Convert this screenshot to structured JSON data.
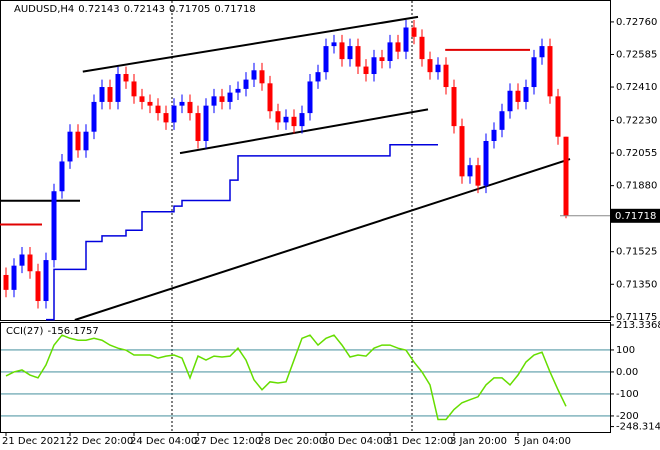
{
  "chart_data": [
    {
      "type": "candlestick",
      "title": "AUDUSD,H4",
      "categories": [
        "21 Dec 2021",
        null,
        null,
        null,
        null,
        null,
        null,
        null,
        "22 Dec 20:00",
        null,
        null,
        null,
        null,
        null,
        null,
        null,
        "24 Dec 04:00",
        null,
        null,
        null,
        null,
        null,
        null,
        null,
        "27 Dec 12:00",
        null,
        null,
        null,
        null,
        null,
        null,
        null,
        "28 Dec 20:00",
        null,
        null,
        null,
        null,
        null,
        null,
        null,
        "30 Dec 04:00",
        null,
        null,
        null,
        null,
        null,
        null,
        null,
        "31 Dec 12:00",
        null,
        null,
        null,
        null,
        null,
        null,
        null,
        "3 Jan 20:00",
        null,
        null,
        null,
        null,
        null,
        null,
        null,
        "5 Jan 04:00",
        null,
        null,
        null,
        null,
        null,
        null
      ],
      "open": [
        0.714,
        0.7132,
        0.7145,
        0.7151,
        0.7142,
        0.7126,
        0.7148,
        0.7185,
        0.7201,
        0.7217,
        0.7207,
        0.7217,
        0.7233,
        0.7241,
        0.7233,
        0.7248,
        0.7244,
        0.7236,
        0.7233,
        0.7231,
        0.7227,
        0.7222,
        0.7231,
        0.7233,
        0.7227,
        0.7212,
        0.7231,
        0.7236,
        0.7233,
        0.7238,
        0.724,
        0.7245,
        0.725,
        0.7243,
        0.7228,
        0.7222,
        0.7225,
        0.722,
        0.7227,
        0.7244,
        0.7249,
        0.7263,
        0.7265,
        0.7256,
        0.7263,
        0.7252,
        0.7248,
        0.7257,
        0.7255,
        0.7265,
        0.726,
        0.7273,
        0.7268,
        0.7256,
        0.7249,
        0.7253,
        0.7241,
        0.722,
        0.7193,
        0.7199,
        0.7188,
        0.7212,
        0.7218,
        0.7228,
        0.7239,
        0.7233,
        0.7241,
        0.7257,
        0.7263,
        0.7236,
        0.72143
      ],
      "high": [
        0.7144,
        0.7149,
        0.7155,
        0.7155,
        0.7146,
        0.7152,
        0.7189,
        0.7205,
        0.7221,
        0.7221,
        0.7221,
        0.7237,
        0.7245,
        0.7245,
        0.7252,
        0.7252,
        0.7248,
        0.724,
        0.7237,
        0.7235,
        0.7231,
        0.7235,
        0.7237,
        0.7237,
        0.7231,
        0.7235,
        0.724,
        0.724,
        0.7242,
        0.7244,
        0.7249,
        0.7254,
        0.7254,
        0.7247,
        0.7232,
        0.7229,
        0.7229,
        0.7231,
        0.7248,
        0.7253,
        0.7267,
        0.7269,
        0.7269,
        0.7267,
        0.7267,
        0.7256,
        0.7261,
        0.7261,
        0.7269,
        0.7269,
        0.7277,
        0.7277,
        0.7272,
        0.726,
        0.7257,
        0.7257,
        0.7245,
        0.7224,
        0.7203,
        0.7203,
        0.7216,
        0.7222,
        0.7232,
        0.7243,
        0.7243,
        0.7245,
        0.7261,
        0.7267,
        0.7267,
        0.724,
        0.72143
      ],
      "low": [
        0.7128,
        0.7128,
        0.7141,
        0.7138,
        0.7122,
        0.7122,
        0.7144,
        0.7181,
        0.7197,
        0.7203,
        0.7203,
        0.7213,
        0.7229,
        0.7229,
        0.7229,
        0.724,
        0.7232,
        0.7229,
        0.7227,
        0.7223,
        0.7218,
        0.7218,
        0.7227,
        0.7223,
        0.7208,
        0.7208,
        0.7227,
        0.7229,
        0.7229,
        0.7234,
        0.7236,
        0.7241,
        0.7239,
        0.7224,
        0.7218,
        0.7218,
        0.7216,
        0.7216,
        0.7223,
        0.724,
        0.7245,
        0.7259,
        0.7252,
        0.7252,
        0.7248,
        0.7244,
        0.7244,
        0.7251,
        0.7251,
        0.7256,
        0.7256,
        0.7264,
        0.7252,
        0.7245,
        0.7245,
        0.7237,
        0.7216,
        0.7189,
        0.7189,
        0.7184,
        0.7184,
        0.7208,
        0.7214,
        0.7224,
        0.7229,
        0.7229,
        0.7237,
        0.7253,
        0.7232,
        0.721,
        0.71705
      ],
      "close": [
        0.7132,
        0.7145,
        0.7151,
        0.7142,
        0.7126,
        0.7148,
        0.7185,
        0.7201,
        0.7217,
        0.7207,
        0.7217,
        0.7233,
        0.7241,
        0.7233,
        0.7248,
        0.7244,
        0.7236,
        0.7233,
        0.7231,
        0.7227,
        0.7222,
        0.7231,
        0.7233,
        0.7227,
        0.7212,
        0.7231,
        0.7236,
        0.7233,
        0.7238,
        0.724,
        0.7245,
        0.725,
        0.7243,
        0.7228,
        0.7222,
        0.7225,
        0.722,
        0.7227,
        0.7244,
        0.7249,
        0.7263,
        0.7265,
        0.7256,
        0.7263,
        0.7252,
        0.7248,
        0.7257,
        0.7255,
        0.7265,
        0.726,
        0.7273,
        0.7268,
        0.7256,
        0.7249,
        0.7253,
        0.7241,
        0.722,
        0.7193,
        0.7199,
        0.7188,
        0.7212,
        0.7218,
        0.7228,
        0.7239,
        0.7233,
        0.7241,
        0.7257,
        0.7263,
        0.7236,
        0.72143,
        0.71718
      ],
      "up_color": "#0000ff",
      "down_color": "#ff0000",
      "ylim": [
        0.71158,
        0.72867
      ],
      "yticks": [
        {
          "value": 0.7276,
          "label": "0.72760"
        },
        0.72585,
        {
          "value": 0.7241,
          "label": "0.72410"
        },
        {
          "value": 0.7223,
          "label": "0.72230"
        },
        0.72055,
        {
          "value": 0.7188,
          "label": "0.71880"
        },
        0.71525,
        {
          "value": 0.7135,
          "label": "0.71350"
        },
        0.71175
      ],
      "trendlines": [
        {
          "from": [
            9.6,
            0.72493
          ],
          "to": [
            51.5,
            0.72787
          ],
          "color": "#000000"
        },
        {
          "from": [
            21.75,
            0.72055
          ],
          "to": [
            52.75,
            0.7229
          ],
          "color": "#000000"
        },
        {
          "from": [
            8.6,
            0.71158
          ],
          "to": [
            70.5,
            0.72023
          ],
          "color": "#000000"
        },
        {
          "from": [
            -0.75,
            0.71799
          ],
          "to": [
            9.25,
            0.71799
          ],
          "color": "#000000"
        },
        {
          "from": [
            -0.75,
            0.71671
          ],
          "to": [
            4.5,
            0.71671
          ],
          "color": "#e00000"
        },
        {
          "from": [
            54.9,
            0.7261
          ],
          "to": [
            65.5,
            0.7261
          ],
          "color": "#e00000"
        }
      ],
      "step_line": {
        "color": "#0000dd",
        "x": [
          5,
          6,
          10,
          12,
          15,
          17,
          21,
          22,
          28,
          29,
          48,
          54
        ],
        "values": [
          0.7116,
          0.7143,
          0.7158,
          0.7161,
          0.7164,
          0.7174,
          0.7177,
          0.718,
          0.7191,
          0.7204,
          0.721,
          0.721
        ]
      }
    },
    {
      "type": "line",
      "title": "CCI(27)",
      "color": "#66dd00",
      "values": [
        -18,
        0,
        9,
        -14,
        -27,
        32,
        122,
        167,
        153,
        144,
        144,
        153,
        144,
        122,
        108,
        99,
        77,
        77,
        77,
        63,
        72,
        77,
        63,
        -27,
        72,
        54,
        72,
        68,
        72,
        108,
        54,
        -36,
        -81,
        -45,
        -50,
        -45,
        54,
        153,
        167,
        122,
        153,
        167,
        122,
        68,
        77,
        72,
        108,
        122,
        122,
        108,
        99,
        45,
        0,
        -59,
        -216,
        -216,
        -171,
        -140,
        -126,
        -113,
        -59,
        -27,
        -27,
        -59,
        -14,
        45,
        77,
        90,
        0,
        -81,
        -156.1757
      ],
      "ylim": [
        -273,
        227
      ],
      "yticks": [
        213.3368,
        100,
        {
          "value": 0,
          "label": "0.00"
        },
        -100,
        -200,
        -248.3148
      ]
    }
  ]
}
